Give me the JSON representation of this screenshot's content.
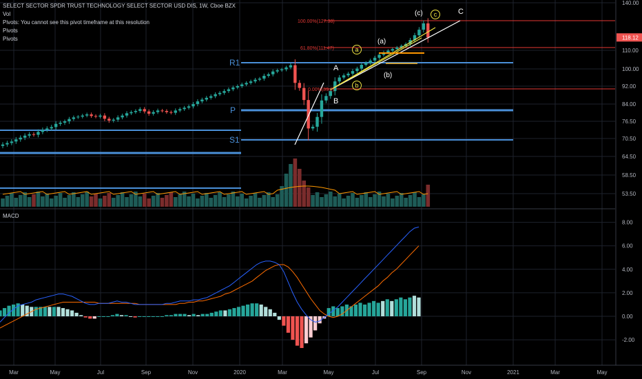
{
  "header": {
    "title": "SELECT SECTOR SPDR TRUST TECHNOLOGY SELECT SECTOR USD DIS, 1W, Cboe BZX",
    "lines": [
      "Vol",
      "Pivots: You cannot see this pivot timeframe at this resolution",
      "Pivots",
      "Pivots"
    ]
  },
  "price_axis": {
    "ticks": [
      "140.00",
      "118.12",
      "110.00",
      "100.00",
      "92.00",
      "84.00",
      "76.50",
      "70.50",
      "64.50",
      "58.50",
      "53.50"
    ],
    "last_price": "118.12",
    "last_price_color": "#ef5350"
  },
  "macd_axis": {
    "title": "MACD",
    "ticks": [
      "8.00",
      "6.00",
      "4.00",
      "2.00",
      "0.00",
      "-2.00"
    ]
  },
  "time_axis": [
    "Mar",
    "May",
    "Jul",
    "Sep",
    "Nov",
    "2020",
    "Mar",
    "May",
    "Jul",
    "Sep",
    "Nov",
    "2021",
    "Mar",
    "May"
  ],
  "pivots": {
    "R1": "R1",
    "P": "P",
    "S1": "S1",
    "color": "#4a90d9"
  },
  "fib": {
    "l100": "100.00%(127.38)",
    "l618": "61.80%(111.47)",
    "l0": "0.00%(89.0)",
    "color": "#e53935"
  },
  "wave_labels": {
    "A": "A",
    "B": "B",
    "C": "C",
    "c_paren": "(c)",
    "a_paren": "(a)",
    "b_paren": "(b)",
    "a_circ": "a",
    "b_circ": "b",
    "c_circ": "c"
  },
  "colors": {
    "up": "#26a69a",
    "down": "#ef5350",
    "macd_line": "#2962ff",
    "signal_line": "#ff6d00",
    "hist_up_strong": "#26a69a",
    "hist_up_weak": "#b2dfdb",
    "hist_down_strong": "#ef5350",
    "hist_down_weak": "#ffcdd2",
    "grid": "#1e222d",
    "vol_ma": "#ff9800"
  },
  "chart_data": [
    {
      "type": "candlestick",
      "title": "SELECT SECTOR SPDR TRUST TECHNOLOGY SELECT SECTOR USD DIS, 1W, Cboe BZX",
      "x_ticks": [
        "Mar",
        "May",
        "Jul",
        "Sep",
        "Nov",
        "2020",
        "Mar",
        "May",
        "Jul",
        "Sep",
        "Nov",
        "2021",
        "Mar",
        "May"
      ],
      "y_ticks": [
        140,
        110,
        100,
        92,
        84,
        76.5,
        70.5,
        64.5,
        58.5,
        53.5
      ],
      "close": [
        68.5,
        69.0,
        69.5,
        70.2,
        70.8,
        71.5,
        72.0,
        71.8,
        72.8,
        73.5,
        74.0,
        74.5,
        75.6,
        76.0,
        76.5,
        77.5,
        78.2,
        78.5,
        79.0,
        79.5,
        78.8,
        78.5,
        79.0,
        77.6,
        76.8,
        77.2,
        78.2,
        79.0,
        80.0,
        80.5,
        81.0,
        81.8,
        80.8,
        79.8,
        80.5,
        81.2,
        81.0,
        80.5,
        80.2,
        81.2,
        81.8,
        82.4,
        83.0,
        84.0,
        85.2,
        86.0,
        86.8,
        87.5,
        88.4,
        89.0,
        89.8,
        90.6,
        91.4,
        92.0,
        92.8,
        93.5,
        94.2,
        95.0,
        95.5,
        96.8,
        97.5,
        98.8,
        99.4,
        99.8,
        100.8,
        102.0,
        93.5,
        91.2,
        85.8,
        74.0,
        74.6,
        78.4,
        85.6,
        87.6,
        89.8,
        94.2,
        96.0,
        97.0,
        97.8,
        99.0,
        100.2,
        102.2,
        103.2,
        104.5,
        106.0,
        107.6,
        108.8,
        109.8,
        110.8,
        111.8,
        112.8,
        114.0,
        116.5,
        119.5,
        123.0,
        127.0,
        118.12
      ]
    },
    {
      "type": "bar",
      "title": "Vol"
    },
    {
      "type": "line",
      "title": "MACD",
      "y_ticks": [
        8,
        6,
        4,
        2,
        0,
        -2
      ],
      "series": [
        {
          "values": [
            -0.5,
            -0.1,
            0.3,
            0.6,
            0.9,
            1.0,
            1.1,
            1.2,
            1.4,
            1.5,
            1.6,
            1.7,
            1.8,
            1.9,
            1.9,
            1.8,
            1.7,
            1.5,
            1.3,
            1.1,
            1.0,
            1.0,
            1.1,
            1.1,
            1.1,
            1.2,
            1.3,
            1.2,
            1.2,
            1.1,
            1.0,
            1.0,
            1.0,
            1.0,
            1.0,
            1.0,
            1.0,
            1.1,
            1.1,
            1.2,
            1.3,
            1.3,
            1.3,
            1.4,
            1.4,
            1.5,
            1.6,
            1.8,
            2.0,
            2.2,
            2.4,
            2.6,
            2.9,
            3.2,
            3.5,
            3.8,
            4.1,
            4.4,
            4.6,
            4.7,
            4.7,
            4.6,
            4.4,
            3.8,
            2.9,
            2.0,
            1.2,
            0.6,
            0.1,
            -0.3,
            -0.5,
            -0.4,
            -0.1,
            0.2,
            0.5,
            0.8,
            1.2,
            1.6,
            2.0,
            2.4,
            2.8,
            3.2,
            3.6,
            4.0,
            4.4,
            4.8,
            5.2,
            5.6,
            6.0,
            6.4,
            6.8,
            7.2,
            7.5,
            7.6
          ]
        },
        {
          "values": [
            -1.0,
            -0.8,
            -0.6,
            -0.4,
            -0.2,
            0.0,
            0.2,
            0.4,
            0.6,
            0.7,
            0.8,
            0.9,
            1.0,
            1.1,
            1.2,
            1.2,
            1.2,
            1.2,
            1.2,
            1.2,
            1.2,
            1.2,
            1.1,
            1.1,
            1.1,
            1.1,
            1.1,
            1.1,
            1.1,
            1.1,
            1.1,
            1.0,
            1.0,
            1.0,
            1.0,
            1.0,
            1.0,
            1.0,
            1.0,
            1.0,
            1.1,
            1.1,
            1.2,
            1.2,
            1.3,
            1.3,
            1.4,
            1.5,
            1.6,
            1.7,
            1.9,
            2.0,
            2.2,
            2.4,
            2.6,
            2.8,
            3.0,
            3.3,
            3.6,
            3.9,
            4.1,
            4.3,
            4.4,
            4.4,
            4.2,
            3.8,
            3.3,
            2.7,
            2.1,
            1.5,
            1.0,
            0.5,
            0.2,
            0.0,
            -0.1,
            0.0,
            0.2,
            0.5,
            0.8,
            1.1,
            1.4,
            1.7,
            2.0,
            2.3,
            2.6,
            3.0,
            3.3,
            3.7,
            4.0,
            4.4,
            4.8,
            5.2,
            5.6,
            6.0
          ]
        }
      ]
    }
  ]
}
